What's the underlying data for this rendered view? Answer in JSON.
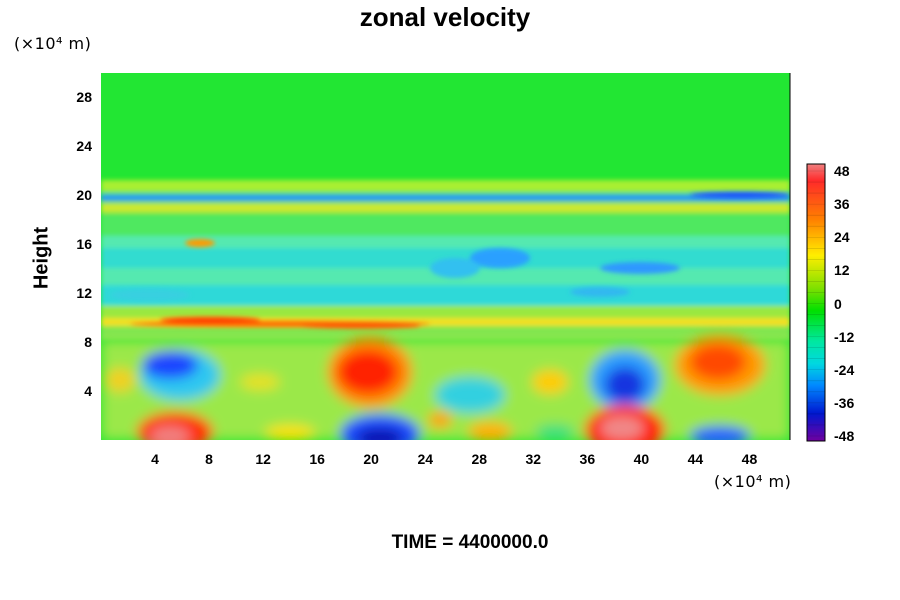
{
  "chart_data": {
    "type": "heatmap",
    "title": "zonal velocity",
    "ylabel": "Height",
    "y_unit": "(×10⁴ m)",
    "x_unit": "(×10⁴ m)",
    "time_label": "TIME = 4400000.0",
    "x_ticks": [
      "4",
      "8",
      "12",
      "16",
      "20",
      "24",
      "28",
      "32",
      "36",
      "40",
      "44",
      "48"
    ],
    "y_ticks": [
      "4",
      "8",
      "12",
      "16",
      "20",
      "24",
      "28"
    ],
    "xlim": [
      0,
      51
    ],
    "ylim": [
      0,
      30
    ],
    "colorbar": {
      "ticks": [
        "48",
        "36",
        "24",
        "12",
        "0",
        "-12",
        "-24",
        "-36",
        "-48"
      ],
      "range": [
        -48,
        48
      ]
    },
    "features": [
      {
        "x": 21,
        "y": 6,
        "value": 36
      },
      {
        "x": 46,
        "y": 6,
        "value": 30
      },
      {
        "x": 39,
        "y": 1,
        "value": 44
      },
      {
        "x": 5,
        "y": 1,
        "value": 40
      },
      {
        "x": 21,
        "y": 0.5,
        "value": -44
      },
      {
        "x": 39,
        "y": 4.8,
        "value": -36
      },
      {
        "x": 6,
        "y": 6.5,
        "value": -30
      },
      {
        "x": 30,
        "y": 14.8,
        "value": -28
      },
      {
        "x": 45,
        "y": 0.8,
        "value": -28
      }
    ]
  }
}
